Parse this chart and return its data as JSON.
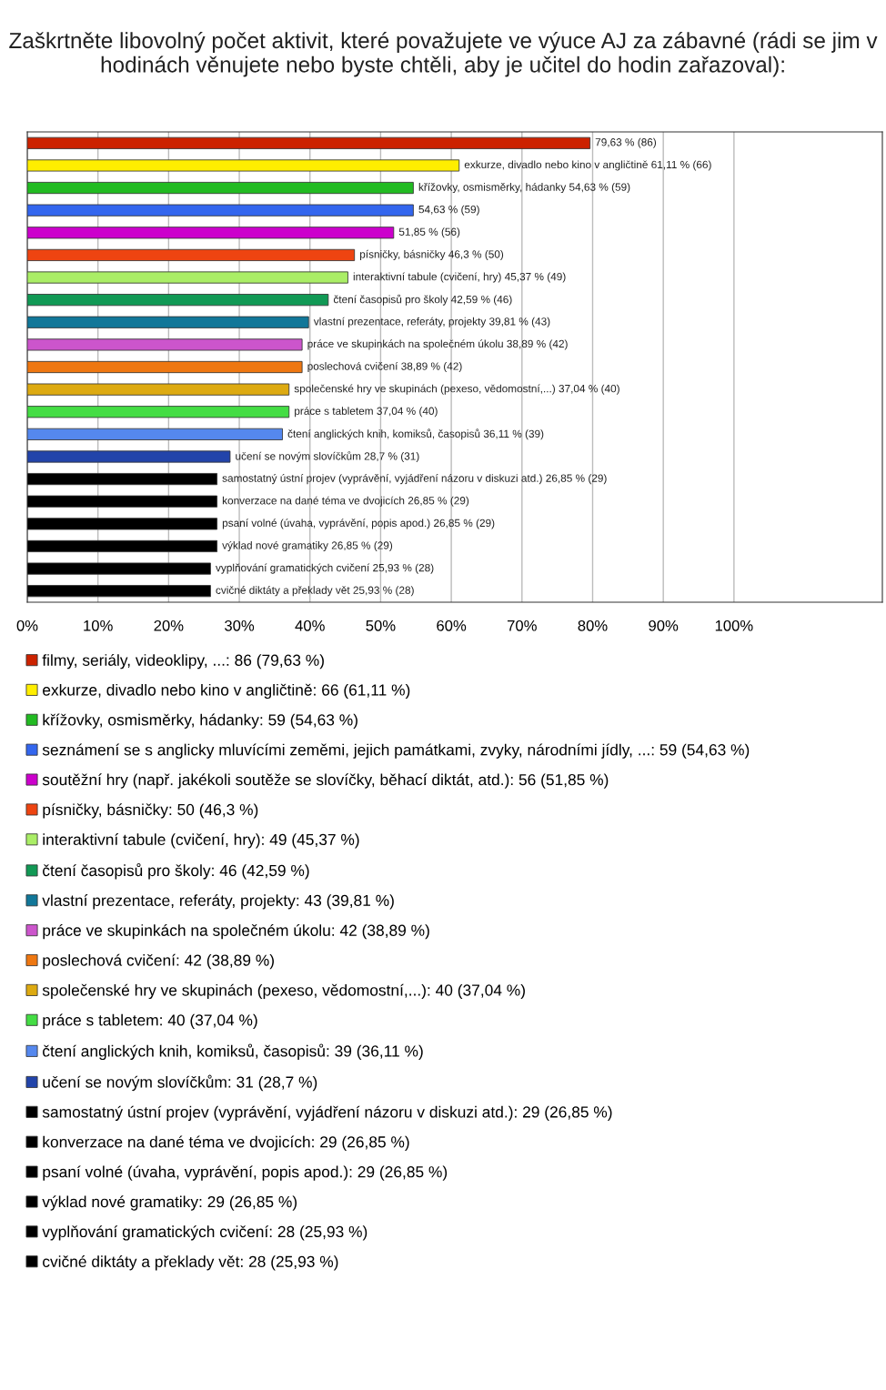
{
  "chart_data": {
    "type": "bar",
    "orientation": "horizontal",
    "title": "Zaškrtněte libovolný počet aktivit, které považujete ve výuce AJ za zábavné (rádi se jim v hodinách věnujete nebo byste chtěli, aby je učitel do hodin zařazoval):",
    "categories": [
      null,
      null,
      null,
      null,
      null,
      null,
      null,
      null,
      null,
      null,
      null,
      null,
      null,
      null,
      null,
      null,
      null,
      null,
      null,
      null,
      null
    ],
    "series": [
      {
        "name": "filmy, seriály, videoklipy, ...: 86 (79,63 %)",
        "color": "#cc2200",
        "values": [
          79.63,
          null,
          null,
          null,
          null,
          null,
          null,
          null,
          null,
          null,
          null,
          null,
          null,
          null,
          null,
          null,
          null,
          null,
          null,
          null,
          null
        ],
        "value_labels": [
          "79,63 % (86)",
          null,
          null,
          null,
          null,
          null,
          null,
          null,
          null,
          null,
          null,
          null,
          null,
          null,
          null,
          null,
          null,
          null,
          null,
          null,
          null
        ]
      },
      {
        "name": "exkurze, divadlo nebo kino v angličtině: 66 (61,11 %)",
        "color": "#ffee00",
        "values": [
          null,
          61.11,
          null,
          null,
          null,
          null,
          null,
          null,
          null,
          null,
          null,
          null,
          null,
          null,
          null,
          null,
          null,
          null,
          null,
          null,
          null
        ],
        "value_labels": [
          null,
          "exkurze, divadlo nebo kino v angličtině 61,11 % (66)",
          null,
          null,
          null,
          null,
          null,
          null,
          null,
          null,
          null,
          null,
          null,
          null,
          null,
          null,
          null,
          null,
          null,
          null,
          null
        ]
      },
      {
        "name": "křížovky, osmisměrky, hádanky: 59 (54,63 %)",
        "color": "#22bb22",
        "values": [
          null,
          null,
          54.63,
          null,
          null,
          null,
          null,
          null,
          null,
          null,
          null,
          null,
          null,
          null,
          null,
          null,
          null,
          null,
          null,
          null,
          null
        ],
        "value_labels": [
          null,
          null,
          "křížovky, osmisměrky, hádanky 54,63 % (59)",
          null,
          null,
          null,
          null,
          null,
          null,
          null,
          null,
          null,
          null,
          null,
          null,
          null,
          null,
          null,
          null,
          null,
          null
        ]
      },
      {
        "name": "seznámení se s anglicky mluvícími zeměmi, jejich památkami, zvyky, národními jídly, ...: 59 (54,63 %)",
        "color": "#3366ee",
        "values": [
          null,
          null,
          null,
          54.63,
          null,
          null,
          null,
          null,
          null,
          null,
          null,
          null,
          null,
          null,
          null,
          null,
          null,
          null,
          null,
          null,
          null
        ],
        "value_labels": [
          null,
          null,
          null,
          "54,63 % (59)",
          null,
          null,
          null,
          null,
          null,
          null,
          null,
          null,
          null,
          null,
          null,
          null,
          null,
          null,
          null,
          null,
          null
        ]
      },
      {
        "name": "soutěžní hry (např. jakékoli soutěže se slovíčky, běhací diktát, atd.): 56 (51,85 %)",
        "color": "#cc00cc",
        "values": [
          null,
          null,
          null,
          null,
          51.85,
          null,
          null,
          null,
          null,
          null,
          null,
          null,
          null,
          null,
          null,
          null,
          null,
          null,
          null,
          null,
          null
        ],
        "value_labels": [
          null,
          null,
          null,
          null,
          "51,85 % (56)",
          null,
          null,
          null,
          null,
          null,
          null,
          null,
          null,
          null,
          null,
          null,
          null,
          null,
          null,
          null,
          null
        ]
      },
      {
        "name": "písničky, básničky: 50 (46,3 %)",
        "color": "#ee4411",
        "values": [
          null,
          null,
          null,
          null,
          null,
          46.3,
          null,
          null,
          null,
          null,
          null,
          null,
          null,
          null,
          null,
          null,
          null,
          null,
          null,
          null,
          null
        ],
        "value_labels": [
          null,
          null,
          null,
          null,
          null,
          "písničky, básničky 46,3 % (50)",
          null,
          null,
          null,
          null,
          null,
          null,
          null,
          null,
          null,
          null,
          null,
          null,
          null,
          null,
          null
        ]
      },
      {
        "name": "interaktivní tabule (cvičení, hry): 49 (45,37 %)",
        "color": "#aaee66",
        "values": [
          null,
          null,
          null,
          null,
          null,
          null,
          45.37,
          null,
          null,
          null,
          null,
          null,
          null,
          null,
          null,
          null,
          null,
          null,
          null,
          null,
          null
        ],
        "value_labels": [
          null,
          null,
          null,
          null,
          null,
          null,
          "interaktivní tabule (cvičení, hry) 45,37 % (49)",
          null,
          null,
          null,
          null,
          null,
          null,
          null,
          null,
          null,
          null,
          null,
          null,
          null,
          null
        ]
      },
      {
        "name": "čtení časopisů pro školy: 46 (42,59 %)",
        "color": "#119955",
        "values": [
          null,
          null,
          null,
          null,
          null,
          null,
          null,
          42.59,
          null,
          null,
          null,
          null,
          null,
          null,
          null,
          null,
          null,
          null,
          null,
          null,
          null
        ],
        "value_labels": [
          null,
          null,
          null,
          null,
          null,
          null,
          null,
          "čtení časopisů pro školy 42,59 % (46)",
          null,
          null,
          null,
          null,
          null,
          null,
          null,
          null,
          null,
          null,
          null,
          null,
          null
        ]
      },
      {
        "name": "vlastní prezentace, referáty, projekty: 43 (39,81 %)",
        "color": "#117799",
        "values": [
          null,
          null,
          null,
          null,
          null,
          null,
          null,
          null,
          39.81,
          null,
          null,
          null,
          null,
          null,
          null,
          null,
          null,
          null,
          null,
          null,
          null
        ],
        "value_labels": [
          null,
          null,
          null,
          null,
          null,
          null,
          null,
          null,
          "vlastní prezentace, referáty, projekty 39,81 % (43)",
          null,
          null,
          null,
          null,
          null,
          null,
          null,
          null,
          null,
          null,
          null,
          null
        ]
      },
      {
        "name": "práce ve skupinkách na společném úkolu: 42 (38,89 %)",
        "color": "#cc55cc",
        "values": [
          null,
          null,
          null,
          null,
          null,
          null,
          null,
          null,
          null,
          38.89,
          null,
          null,
          null,
          null,
          null,
          null,
          null,
          null,
          null,
          null,
          null
        ],
        "value_labels": [
          null,
          null,
          null,
          null,
          null,
          null,
          null,
          null,
          null,
          "práce ve skupinkách na společném úkolu 38,89 % (42)",
          null,
          null,
          null,
          null,
          null,
          null,
          null,
          null,
          null,
          null,
          null
        ]
      },
      {
        "name": "poslechová cvičení: 42 (38,89 %)",
        "color": "#ee7711",
        "values": [
          null,
          null,
          null,
          null,
          null,
          null,
          null,
          null,
          null,
          null,
          38.89,
          null,
          null,
          null,
          null,
          null,
          null,
          null,
          null,
          null,
          null
        ],
        "value_labels": [
          null,
          null,
          null,
          null,
          null,
          null,
          null,
          null,
          null,
          null,
          "poslechová cvičení 38,89 % (42)",
          null,
          null,
          null,
          null,
          null,
          null,
          null,
          null,
          null,
          null
        ]
      },
      {
        "name": "společenské hry ve skupinách (pexeso, vědomostní,...): 40 (37,04 %)",
        "color": "#ddaa11",
        "values": [
          null,
          null,
          null,
          null,
          null,
          null,
          null,
          null,
          null,
          null,
          null,
          37.04,
          null,
          null,
          null,
          null,
          null,
          null,
          null,
          null,
          null
        ],
        "value_labels": [
          null,
          null,
          null,
          null,
          null,
          null,
          null,
          null,
          null,
          null,
          null,
          "společenské hry ve skupinách (pexeso, vědomostní,...) 37,04 % (40)",
          null,
          null,
          null,
          null,
          null,
          null,
          null,
          null,
          null
        ]
      },
      {
        "name": "práce s tabletem: 40 (37,04 %)",
        "color": "#44dd44",
        "values": [
          null,
          null,
          null,
          null,
          null,
          null,
          null,
          null,
          null,
          null,
          null,
          null,
          37.04,
          null,
          null,
          null,
          null,
          null,
          null,
          null,
          null
        ],
        "value_labels": [
          null,
          null,
          null,
          null,
          null,
          null,
          null,
          null,
          null,
          null,
          null,
          null,
          "práce s tabletem 37,04 % (40)",
          null,
          null,
          null,
          null,
          null,
          null,
          null,
          null
        ]
      },
      {
        "name": "čtení anglických knih, komiksů, časopisů: 39 (36,11 %)",
        "color": "#5588ee",
        "values": [
          null,
          null,
          null,
          null,
          null,
          null,
          null,
          null,
          null,
          null,
          null,
          null,
          null,
          36.11,
          null,
          null,
          null,
          null,
          null,
          null,
          null
        ],
        "value_labels": [
          null,
          null,
          null,
          null,
          null,
          null,
          null,
          null,
          null,
          null,
          null,
          null,
          null,
          "čtení anglických knih, komiksů, časopisů 36,11 % (39)",
          null,
          null,
          null,
          null,
          null,
          null,
          null
        ]
      },
      {
        "name": "učení se novým slovíčkům: 31 (28,7 %)",
        "color": "#2244aa",
        "values": [
          null,
          null,
          null,
          null,
          null,
          null,
          null,
          null,
          null,
          null,
          null,
          null,
          null,
          null,
          28.7,
          null,
          null,
          null,
          null,
          null,
          null
        ],
        "value_labels": [
          null,
          null,
          null,
          null,
          null,
          null,
          null,
          null,
          null,
          null,
          null,
          null,
          null,
          null,
          "učení se novým slovíčkům 28,7 % (31)",
          null,
          null,
          null,
          null,
          null,
          null
        ]
      },
      {
        "name": "samostatný ústní projev (vyprávění, vyjádření názoru v diskuzi atd.): 29 (26,85 %)",
        "color": "#000000",
        "values": [
          null,
          null,
          null,
          null,
          null,
          null,
          null,
          null,
          null,
          null,
          null,
          null,
          null,
          null,
          null,
          26.85,
          null,
          null,
          null,
          null,
          null
        ],
        "value_labels": [
          null,
          null,
          null,
          null,
          null,
          null,
          null,
          null,
          null,
          null,
          null,
          null,
          null,
          null,
          null,
          "samostatný ústní projev (vyprávění, vyjádření názoru v diskuzi atd.) 26,85 % (29)",
          null,
          null,
          null,
          null,
          null
        ]
      },
      {
        "name": "konverzace na dané téma ve dvojicích: 29 (26,85 %)",
        "color": "#000000",
        "values": [
          null,
          null,
          null,
          null,
          null,
          null,
          null,
          null,
          null,
          null,
          null,
          null,
          null,
          null,
          null,
          null,
          26.85,
          null,
          null,
          null,
          null
        ],
        "value_labels": [
          null,
          null,
          null,
          null,
          null,
          null,
          null,
          null,
          null,
          null,
          null,
          null,
          null,
          null,
          null,
          null,
          "konverzace na dané téma ve dvojicích 26,85 % (29)",
          null,
          null,
          null,
          null
        ]
      },
      {
        "name": "psaní volné (úvaha, vyprávění, popis apod.): 29 (26,85 %)",
        "color": "#000000",
        "values": [
          null,
          null,
          null,
          null,
          null,
          null,
          null,
          null,
          null,
          null,
          null,
          null,
          null,
          null,
          null,
          null,
          null,
          26.85,
          null,
          null,
          null
        ],
        "value_labels": [
          null,
          null,
          null,
          null,
          null,
          null,
          null,
          null,
          null,
          null,
          null,
          null,
          null,
          null,
          null,
          null,
          null,
          "psaní volné (úvaha, vyprávění, popis apod.) 26,85 % (29)",
          null,
          null,
          null
        ]
      },
      {
        "name": "výklad nové gramatiky: 29 (26,85 %)",
        "color": "#000000",
        "values": [
          null,
          null,
          null,
          null,
          null,
          null,
          null,
          null,
          null,
          null,
          null,
          null,
          null,
          null,
          null,
          null,
          null,
          null,
          26.85,
          null,
          null
        ],
        "value_labels": [
          null,
          null,
          null,
          null,
          null,
          null,
          null,
          null,
          null,
          null,
          null,
          null,
          null,
          null,
          null,
          null,
          null,
          null,
          "výklad nové gramatiky 26,85 % (29)",
          null,
          null
        ]
      },
      {
        "name": "vyplňování gramatických cvičení: 28 (25,93 %)",
        "color": "#000000",
        "values": [
          null,
          null,
          null,
          null,
          null,
          null,
          null,
          null,
          null,
          null,
          null,
          null,
          null,
          null,
          null,
          null,
          null,
          null,
          null,
          25.93,
          null
        ],
        "value_labels": [
          null,
          null,
          null,
          null,
          null,
          null,
          null,
          null,
          null,
          null,
          null,
          null,
          null,
          null,
          null,
          null,
          null,
          null,
          null,
          "vyplňování gramatických cvičení 25,93 % (28)",
          null
        ]
      },
      {
        "name": "cvičné diktáty a překlady vět: 28 (25,93 %)",
        "color": "#000000",
        "values": [
          null,
          null,
          null,
          null,
          null,
          null,
          null,
          null,
          null,
          null,
          null,
          null,
          null,
          null,
          null,
          null,
          null,
          null,
          null,
          null,
          25.93
        ],
        "value_labels": [
          null,
          null,
          null,
          null,
          null,
          null,
          null,
          null,
          null,
          null,
          null,
          null,
          null,
          null,
          null,
          null,
          null,
          null,
          null,
          null,
          "cvičné diktáty a překlady vět 25,93 % (28)"
        ]
      }
    ],
    "xlim": [
      0,
      121
    ],
    "xticks": [
      {
        "value": 0,
        "label": "0%"
      },
      {
        "value": 10,
        "label": "10%"
      },
      {
        "value": 20,
        "label": "20%"
      },
      {
        "value": 30,
        "label": "30%"
      },
      {
        "value": 40,
        "label": "40%"
      },
      {
        "value": 50,
        "label": "50%"
      },
      {
        "value": 60,
        "label": "60%"
      },
      {
        "value": 70,
        "label": "70%"
      },
      {
        "value": 80,
        "label": "80%"
      },
      {
        "value": 90,
        "label": "90%"
      },
      {
        "value": 100,
        "label": "100%"
      }
    ],
    "tick_labels": "x",
    "grid": "x",
    "legend": "bottom"
  }
}
